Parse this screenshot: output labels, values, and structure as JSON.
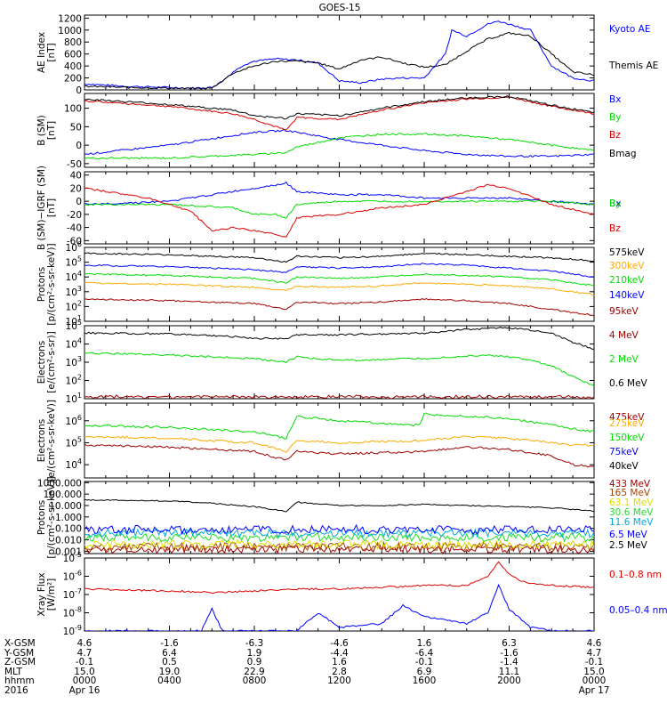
{
  "title": "GOES-15",
  "colors": {
    "black": "#000000",
    "blue": "#0000ff",
    "green": "#00dd00",
    "red": "#dd0000",
    "darkred": "#a00000",
    "orange": "#ffaa00",
    "cyan": "#00aadd",
    "yellow": "#dddd00",
    "lgreen": "#22dd22",
    "brown": "#aa4400"
  },
  "chart_data": [
    {
      "type": "line",
      "panel": "ae",
      "ylabel": [
        "AE Index",
        "[nT]"
      ],
      "yticks": [
        "1200",
        "1000",
        "800",
        "600",
        "400",
        "200",
        "0"
      ],
      "ylim": [
        0,
        1250
      ],
      "ytick_values": [
        1200,
        1000,
        800,
        600,
        400,
        200,
        0
      ],
      "series": [
        {
          "name": "Kyoto AE",
          "color": "blue",
          "x": [
            0,
            2,
            4,
            5,
            6,
            6.5,
            7,
            7.5,
            8,
            9,
            10,
            11,
            12,
            13,
            14,
            15,
            16,
            17,
            17.3,
            18,
            19,
            19.5,
            20,
            21,
            21.5,
            22,
            23,
            24
          ],
          "y": [
            100,
            60,
            40,
            30,
            40,
            150,
            300,
            420,
            480,
            520,
            500,
            450,
            150,
            120,
            180,
            200,
            200,
            600,
            1000,
            900,
            1100,
            1150,
            1100,
            1000,
            700,
            400,
            200,
            150
          ]
        },
        {
          "name": "Themis AE",
          "color": "black",
          "x": [
            0,
            2,
            4,
            5,
            6,
            7,
            8,
            9,
            10,
            11,
            12,
            13,
            14,
            15,
            16,
            17,
            18,
            19,
            20,
            21,
            22,
            23,
            24
          ],
          "y": [
            60,
            40,
            30,
            20,
            30,
            280,
            400,
            480,
            480,
            450,
            350,
            500,
            550,
            450,
            380,
            420,
            650,
            850,
            950,
            900,
            600,
            300,
            250
          ]
        }
      ]
    },
    {
      "type": "line",
      "panel": "bsm",
      "ylabel": [
        "B (SM)",
        "[nT]"
      ],
      "yticks": [
        "100",
        "50",
        "0",
        "-50"
      ],
      "ylim": [
        -60,
        140
      ],
      "ytick_values": [
        100,
        50,
        0,
        -50
      ],
      "series": [
        {
          "name": "Bx",
          "color": "blue",
          "x": [
            0,
            4,
            8,
            9.5,
            10,
            12,
            14,
            16,
            18,
            20,
            22,
            24
          ],
          "y": [
            -25,
            0,
            35,
            40,
            35,
            15,
            0,
            -15,
            -25,
            -30,
            -30,
            -25
          ]
        },
        {
          "name": "By",
          "color": "green",
          "x": [
            0,
            4,
            8,
            9.5,
            10,
            12,
            14,
            16,
            18,
            20,
            22,
            24
          ],
          "y": [
            -35,
            -35,
            -25,
            -20,
            -5,
            20,
            30,
            30,
            25,
            15,
            0,
            -15
          ]
        },
        {
          "name": "Bz",
          "color": "red",
          "x": [
            0,
            4,
            7,
            8,
            9,
            9.5,
            10,
            12,
            14,
            16,
            18,
            20,
            22,
            24
          ],
          "y": [
            120,
            105,
            85,
            70,
            50,
            40,
            75,
            70,
            95,
            115,
            125,
            130,
            105,
            85
          ]
        },
        {
          "name": "Bmag",
          "color": "black",
          "x": [
            0,
            4,
            7,
            8,
            9,
            9.5,
            10,
            12,
            14,
            16,
            18,
            20,
            22,
            24
          ],
          "y": [
            125,
            110,
            95,
            80,
            75,
            72,
            85,
            80,
            100,
            118,
            128,
            132,
            108,
            88
          ]
        }
      ]
    },
    {
      "type": "line",
      "panel": "bigrf",
      "ylabel": [
        "B (SM)−IGRF (SM)",
        "[nT]"
      ],
      "yticks": [
        "40",
        "20",
        "0",
        "-20",
        "-40",
        "-60"
      ],
      "ylim": [
        -65,
        45
      ],
      "ytick_values": [
        40,
        20,
        0,
        -20,
        -40,
        -60
      ],
      "series": [
        {
          "name": "Bx",
          "color": "blue",
          "x": [
            0,
            4,
            7,
            9,
            9.5,
            10,
            12,
            14,
            16,
            18,
            20,
            22,
            24
          ],
          "y": [
            -5,
            0,
            15,
            25,
            28,
            15,
            10,
            10,
            5,
            5,
            5,
            0,
            -5
          ]
        },
        {
          "name": "By",
          "color": "green",
          "x": [
            0,
            4,
            7,
            8,
            9,
            9.5,
            10,
            12,
            14,
            16,
            18,
            20,
            22,
            24
          ],
          "y": [
            -5,
            -5,
            -10,
            -20,
            -20,
            -25,
            -5,
            0,
            0,
            0,
            0,
            0,
            0,
            -5
          ]
        },
        {
          "name": "Bz",
          "color": "red",
          "x": [
            0,
            3,
            5,
            6,
            7,
            8,
            9,
            9.5,
            10,
            12,
            14,
            16,
            18,
            19,
            20,
            22,
            24
          ],
          "y": [
            20,
            5,
            -15,
            -45,
            -40,
            -45,
            -50,
            -55,
            -25,
            -20,
            -10,
            -5,
            15,
            25,
            20,
            -5,
            -20
          ]
        }
      ]
    },
    {
      "type": "line",
      "panel": "protons_kev",
      "log": true,
      "ylabel": [
        "Protons",
        "[p/(cm²-s-sr-keV)]"
      ],
      "yticks_exp": [
        6,
        5,
        4,
        3,
        2,
        1
      ],
      "ylim_exp": [
        1,
        6
      ],
      "series": [
        {
          "name": "575keV",
          "color": "black",
          "x": [
            0,
            4,
            8,
            9.5,
            10,
            12,
            14,
            16,
            18,
            20,
            22,
            24
          ],
          "y": [
            5.6,
            5.5,
            5.3,
            5.0,
            5.4,
            5.3,
            5.4,
            5.6,
            5.5,
            5.4,
            5.3,
            5.1
          ]
        },
        {
          "name": "300keV",
          "color": "orange",
          "x": [
            0,
            4,
            8,
            9.5,
            10,
            12,
            14,
            16,
            18,
            20,
            22,
            24
          ],
          "y": [
            3.6,
            3.5,
            3.3,
            3.1,
            3.4,
            3.3,
            3.4,
            3.6,
            3.5,
            3.4,
            3.2,
            2.8
          ]
        },
        {
          "name": "210keV",
          "color": "green",
          "x": [
            0,
            4,
            8,
            9.5,
            10,
            12,
            14,
            16,
            18,
            20,
            22,
            24
          ],
          "y": [
            4.2,
            4.1,
            3.9,
            3.6,
            4.0,
            3.9,
            4.0,
            4.2,
            4.1,
            4.0,
            3.8,
            3.4
          ]
        },
        {
          "name": "140keV",
          "color": "blue",
          "x": [
            0,
            4,
            8,
            9.5,
            10,
            12,
            14,
            16,
            18,
            20,
            22,
            24
          ],
          "y": [
            4.8,
            4.7,
            4.5,
            4.3,
            4.7,
            4.6,
            4.7,
            4.9,
            4.8,
            4.6,
            4.4,
            4.0
          ]
        },
        {
          "name": "95keV",
          "color": "darkred",
          "x": [
            0,
            4,
            8,
            9.5,
            10,
            12,
            14,
            16,
            18,
            20,
            22,
            24
          ],
          "y": [
            2.5,
            2.4,
            2.2,
            1.8,
            2.3,
            2.2,
            2.3,
            2.5,
            2.4,
            2.2,
            1.8,
            1.4
          ]
        }
      ]
    },
    {
      "type": "line",
      "panel": "electrons_mev",
      "log": true,
      "ylabel": [
        "Electrons",
        "[e/(cm²-s-sr)]"
      ],
      "yticks_exp": [
        5,
        4,
        3,
        2,
        1
      ],
      "ylim_exp": [
        1,
        5
      ],
      "series": [
        {
          "name": "4 MeV",
          "color": "darkred",
          "x": [
            0,
            6,
            12,
            18,
            24
          ],
          "y": [
            1.1,
            1.1,
            1.1,
            1.1,
            1.1
          ]
        },
        {
          "name": "2 MeV",
          "color": "green",
          "x": [
            0,
            4,
            8,
            9.5,
            10,
            12,
            16,
            19,
            20,
            21,
            22,
            23,
            24
          ],
          "y": [
            3.5,
            3.4,
            3.2,
            3.0,
            3.3,
            3.1,
            3.2,
            3.4,
            3.3,
            3.1,
            2.8,
            2.2,
            1.7
          ]
        },
        {
          "name": "0.6 MeV",
          "color": "black",
          "x": [
            0,
            4,
            7,
            8,
            9.5,
            10,
            12,
            16,
            18,
            20,
            22,
            23,
            24
          ],
          "y": [
            4.6,
            4.55,
            4.4,
            4.3,
            4.3,
            4.5,
            4.5,
            4.6,
            4.8,
            4.9,
            4.6,
            4.1,
            3.7
          ]
        }
      ]
    },
    {
      "type": "line",
      "panel": "electrons_kev",
      "log": true,
      "ylabel": [
        "Electrons",
        "[e/(cm²-s-sr-keV)]"
      ],
      "yticks_exp": [
        6,
        5,
        4
      ],
      "ylim_exp": [
        3.4,
        6.8
      ],
      "series": [
        {
          "name": "475keV",
          "color": "darkred",
          "x": [
            0,
            4,
            8,
            9.5,
            10,
            12,
            16,
            18,
            20,
            22,
            23,
            24
          ],
          "y": [
            4.9,
            4.8,
            4.6,
            4.2,
            4.6,
            4.5,
            4.6,
            4.8,
            4.7,
            4.4,
            4.0,
            3.9
          ]
        },
        {
          "name": "275keV",
          "color": "orange",
          "x": [
            0,
            4,
            8,
            9.5,
            10,
            12,
            16,
            18,
            20,
            22,
            23,
            24
          ],
          "y": [
            5.3,
            5.2,
            5.0,
            4.6,
            5.1,
            5.0,
            5.1,
            5.3,
            5.2,
            5.0,
            4.9,
            4.9
          ]
        },
        {
          "name": "150keV",
          "color": "green",
          "x": [
            0,
            4,
            8,
            9.5,
            9.8,
            10,
            12,
            15.5,
            15.8,
            16,
            18,
            20,
            22,
            24
          ],
          "y": [
            5.8,
            5.7,
            5.5,
            5.2,
            5.8,
            6.2,
            6.0,
            5.8,
            5.9,
            6.3,
            6.2,
            6.1,
            5.8,
            5.5
          ]
        },
        {
          "name": "75keV",
          "color": "blue",
          "x": [
            0,
            24
          ],
          "y": [
            null,
            null
          ]
        },
        {
          "name": "40keV",
          "color": "black",
          "x": [
            0,
            24
          ],
          "y": [
            null,
            null
          ]
        }
      ]
    },
    {
      "type": "line",
      "panel": "protons_mev",
      "log": true,
      "ylabel": [
        "Protons",
        "[p/(cm²-s-sr-keV)]"
      ],
      "yticks": [
        "1000.000",
        "100.000",
        "10.000",
        "1.000",
        "0.100",
        "0.010",
        "0.001"
      ],
      "yticks_exp": [
        3,
        2,
        1,
        0,
        -1,
        -2,
        -3
      ],
      "ylim_exp": [
        -3.2,
        3.1
      ],
      "series": [
        {
          "name": "433 MeV",
          "color": "darkred",
          "x": [
            0,
            24
          ],
          "y": [
            -2.8,
            -2.8
          ]
        },
        {
          "name": "165 MeV",
          "color": "brown",
          "x": [
            0,
            24
          ],
          "y": [
            -2.6,
            -2.6
          ]
        },
        {
          "name": "63.1 MeV",
          "color": "yellow",
          "x": [
            0,
            24
          ],
          "y": [
            -2.4,
            -2.4
          ]
        },
        {
          "name": "30.6 MeV",
          "color": "lgreen",
          "x": [
            0,
            24
          ],
          "y": [
            -1.8,
            -1.8
          ]
        },
        {
          "name": "11.6 MeV",
          "color": "cyan",
          "x": [
            0,
            24
          ],
          "y": [
            -1.4,
            -1.4
          ]
        },
        {
          "name": "6.5 MeV",
          "color": "blue",
          "x": [
            0,
            24
          ],
          "y": [
            -1.1,
            -1.1
          ]
        },
        {
          "name": "2.5 MeV",
          "color": "black",
          "x": [
            0,
            4,
            6,
            8,
            9.5,
            10,
            12,
            14,
            16,
            18,
            20,
            22,
            24
          ],
          "y": [
            1.5,
            1.4,
            1.2,
            0.9,
            0.5,
            1.3,
            1.0,
            1.0,
            1.1,
            1.0,
            0.9,
            0.8,
            0.5
          ]
        }
      ]
    },
    {
      "type": "line",
      "panel": "xray",
      "log": true,
      "ylabel": [
        "Xray Flux",
        "[W/m²]"
      ],
      "yticks_exp": [
        -5,
        -6,
        -7,
        -8,
        -9
      ],
      "ylim_exp": [
        -9,
        -5
      ],
      "series": [
        {
          "name": "0.1–0.8 nm",
          "color": "red",
          "x": [
            0,
            4,
            6,
            8,
            10,
            12,
            14,
            16,
            18,
            19,
            19.5,
            20,
            20.5,
            21,
            22,
            24
          ],
          "y": [
            -6.7,
            -6.8,
            -6.9,
            -6.8,
            -6.7,
            -6.7,
            -6.6,
            -6.5,
            -6.5,
            -6.0,
            -5.2,
            -5.9,
            -6.2,
            -6.4,
            -6.5,
            -6.6
          ]
        },
        {
          "name": "0.05–0.4 nm",
          "color": "blue",
          "x": [
            0,
            2,
            5.5,
            6,
            6.5,
            10,
            11,
            12,
            14,
            15,
            16,
            18,
            19,
            19.5,
            20,
            21,
            22,
            24
          ],
          "y": [
            -9,
            -9,
            -9,
            -7.8,
            -9,
            -9,
            -8.0,
            -8.8,
            -8.6,
            -7.6,
            -8.2,
            -8.6,
            -8.0,
            -6.5,
            -7.8,
            -8.8,
            -9,
            -9
          ]
        }
      ]
    }
  ],
  "xaxis": {
    "tick_hours": [
      0,
      4,
      8,
      12,
      16,
      20,
      24
    ],
    "rows": [
      {
        "label": "X-GSM",
        "values": [
          "4.6",
          "-1.6",
          "-6.3",
          "-4.6",
          "1.6",
          "6.3",
          "4.6"
        ]
      },
      {
        "label": "Y-GSM",
        "values": [
          "4.7",
          "6.4",
          "1.9",
          "-4.4",
          "-6.4",
          "-1.6",
          "4.7"
        ]
      },
      {
        "label": "Z-GSM",
        "values": [
          "-0.1",
          "0.5",
          "0.9",
          "1.6",
          "-0.1",
          "-1.4",
          "-0.1"
        ]
      },
      {
        "label": "MLT",
        "values": [
          "15.0",
          "19.0",
          "22.9",
          "2.8",
          "6.9",
          "11.1",
          "15.0"
        ]
      },
      {
        "label": "hhmm",
        "values": [
          "0000",
          "0400",
          "0800",
          "1200",
          "1600",
          "2000",
          "0000"
        ]
      },
      {
        "label": "2016",
        "values": [
          "Apr 16",
          "",
          "",
          "",
          "",
          "",
          "Apr 17"
        ]
      }
    ]
  }
}
